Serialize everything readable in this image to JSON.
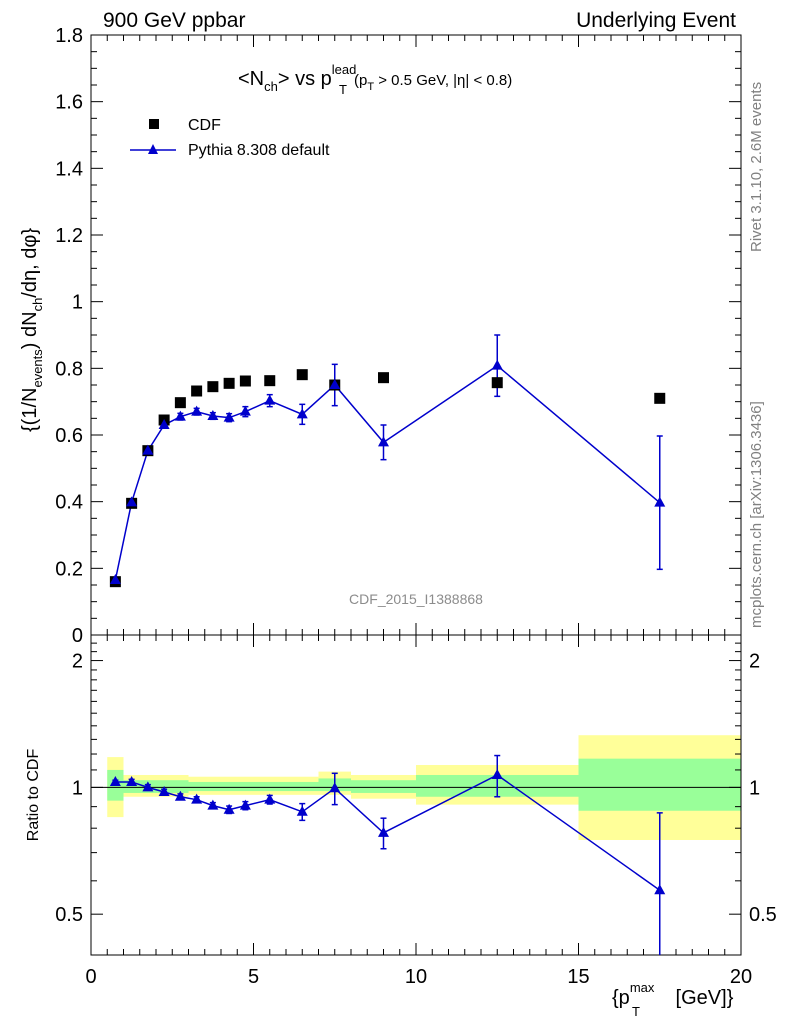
{
  "header": {
    "left": "900 GeV ppbar",
    "right": "Underlying Event"
  },
  "side_labels": {
    "rivet": "Rivet 3.1.10,  2.6M events",
    "mcplots": "mcplots.cern.ch [arXiv:1306.3436]"
  },
  "watermark": "CDF_2015_I1388868",
  "title": {
    "prefix": "<N",
    "sub1": "ch",
    "mid": "> vs p",
    "sup": "lead",
    "sub2": "T",
    "cut1": "(p",
    "cut_sub": "T",
    "cut2": " > 0.5 GeV, |η| < 0.8)"
  },
  "legend": [
    {
      "name": "CDF",
      "marker": "square",
      "color": "#000000"
    },
    {
      "name": "Pythia 8.308 default",
      "marker": "triangle",
      "color": "#0000cc"
    }
  ],
  "axes": {
    "ylabel_main": {
      "a": "{(1/N",
      "b": "events",
      "c": ") dN",
      "d": "ch",
      "e": "/dη, dφ}"
    },
    "ylabel_ratio": "Ratio to CDF",
    "xlabel": {
      "a": "{p",
      "sup": "max",
      "sub": "T",
      "b": " [GeV]}"
    }
  },
  "colors": {
    "data": "#000000",
    "mc": "#0000cc",
    "band_inner": "#99ff99",
    "band_outer": "#ffff99",
    "watermark": "#8c8c8c"
  },
  "chart_data": [
    {
      "type": "scatter",
      "panel": "main",
      "xlim": [
        0,
        20
      ],
      "ylim": [
        0,
        1.8
      ],
      "yticks": [
        0,
        0.2,
        0.4,
        0.6,
        0.8,
        1,
        1.2,
        1.4,
        1.6,
        1.8
      ],
      "ytick_labels": [
        "0",
        "0.2",
        "0.4",
        "0.6",
        "0.8",
        "1",
        "1.2",
        "1.4",
        "1.6",
        "1.8"
      ],
      "series": [
        {
          "name": "CDF",
          "x": [
            0.75,
            1.25,
            1.75,
            2.25,
            2.75,
            3.25,
            3.75,
            4.25,
            4.75,
            5.5,
            6.5,
            7.5,
            9.0,
            12.5,
            17.5
          ],
          "y": [
            0.16,
            0.395,
            0.553,
            0.645,
            0.697,
            0.732,
            0.745,
            0.755,
            0.762,
            0.763,
            0.781,
            0.75,
            0.772,
            0.757,
            0.71
          ]
        },
        {
          "name": "Pythia 8.308 default",
          "x": [
            0.75,
            1.25,
            1.75,
            2.25,
            2.75,
            3.25,
            3.75,
            4.25,
            4.75,
            5.5,
            6.5,
            7.5,
            9.0,
            12.5,
            17.5
          ],
          "y": [
            0.165,
            0.398,
            0.553,
            0.63,
            0.655,
            0.67,
            0.657,
            0.652,
            0.67,
            0.703,
            0.662,
            0.75,
            0.578,
            0.808,
            0.397
          ],
          "yerr": [
            0.005,
            0.008,
            0.008,
            0.008,
            0.01,
            0.01,
            0.01,
            0.012,
            0.015,
            0.018,
            0.03,
            0.062,
            0.052,
            0.092,
            0.2
          ]
        }
      ]
    },
    {
      "type": "scatter",
      "panel": "ratio",
      "ylabel": "Ratio to CDF",
      "xlim": [
        0,
        20
      ],
      "ylim": [
        0.4,
        2.3
      ],
      "log_y": true,
      "xticks": [
        0,
        5,
        10,
        15,
        20
      ],
      "xtick_labels": [
        "0",
        "5",
        "10",
        "15",
        "20"
      ],
      "yticks": [
        0.5,
        1,
        2
      ],
      "ytick_labels": [
        "0.5",
        "1",
        "2"
      ],
      "reference_line": 1,
      "bands": [
        {
          "x_low": 0.5,
          "x_high": 1.0,
          "inner": [
            0.93,
            1.1
          ],
          "outer": [
            0.85,
            1.18
          ]
        },
        {
          "x_low": 1.0,
          "x_high": 3.0,
          "inner": [
            0.97,
            1.04
          ],
          "outer": [
            0.95,
            1.07
          ]
        },
        {
          "x_low": 3.0,
          "x_high": 7.0,
          "inner": [
            0.98,
            1.03
          ],
          "outer": [
            0.96,
            1.06
          ]
        },
        {
          "x_low": 7.0,
          "x_high": 8.0,
          "inner": [
            0.98,
            1.05
          ],
          "outer": [
            0.96,
            1.09
          ]
        },
        {
          "x_low": 8.0,
          "x_high": 10.0,
          "inner": [
            0.97,
            1.04
          ],
          "outer": [
            0.94,
            1.07
          ]
        },
        {
          "x_low": 10.0,
          "x_high": 15.0,
          "inner": [
            0.95,
            1.07
          ],
          "outer": [
            0.91,
            1.13
          ]
        },
        {
          "x_low": 15.0,
          "x_high": 20.0,
          "inner": [
            0.88,
            1.17
          ],
          "outer": [
            0.75,
            1.33
          ]
        }
      ],
      "series": [
        {
          "name": "Pythia 8.308 default",
          "x": [
            0.75,
            1.25,
            1.75,
            2.25,
            2.75,
            3.25,
            3.75,
            4.25,
            4.75,
            5.5,
            6.5,
            7.5,
            9.0,
            12.5,
            17.5
          ],
          "y": [
            1.03,
            1.03,
            1.0,
            0.975,
            0.95,
            0.935,
            0.905,
            0.885,
            0.905,
            0.935,
            0.875,
            0.995,
            0.78,
            1.07,
            0.57
          ],
          "yerr": [
            0.01,
            0.015,
            0.015,
            0.015,
            0.015,
            0.015,
            0.015,
            0.018,
            0.02,
            0.022,
            0.04,
            0.085,
            0.065,
            0.12,
            0.3
          ]
        }
      ]
    }
  ]
}
